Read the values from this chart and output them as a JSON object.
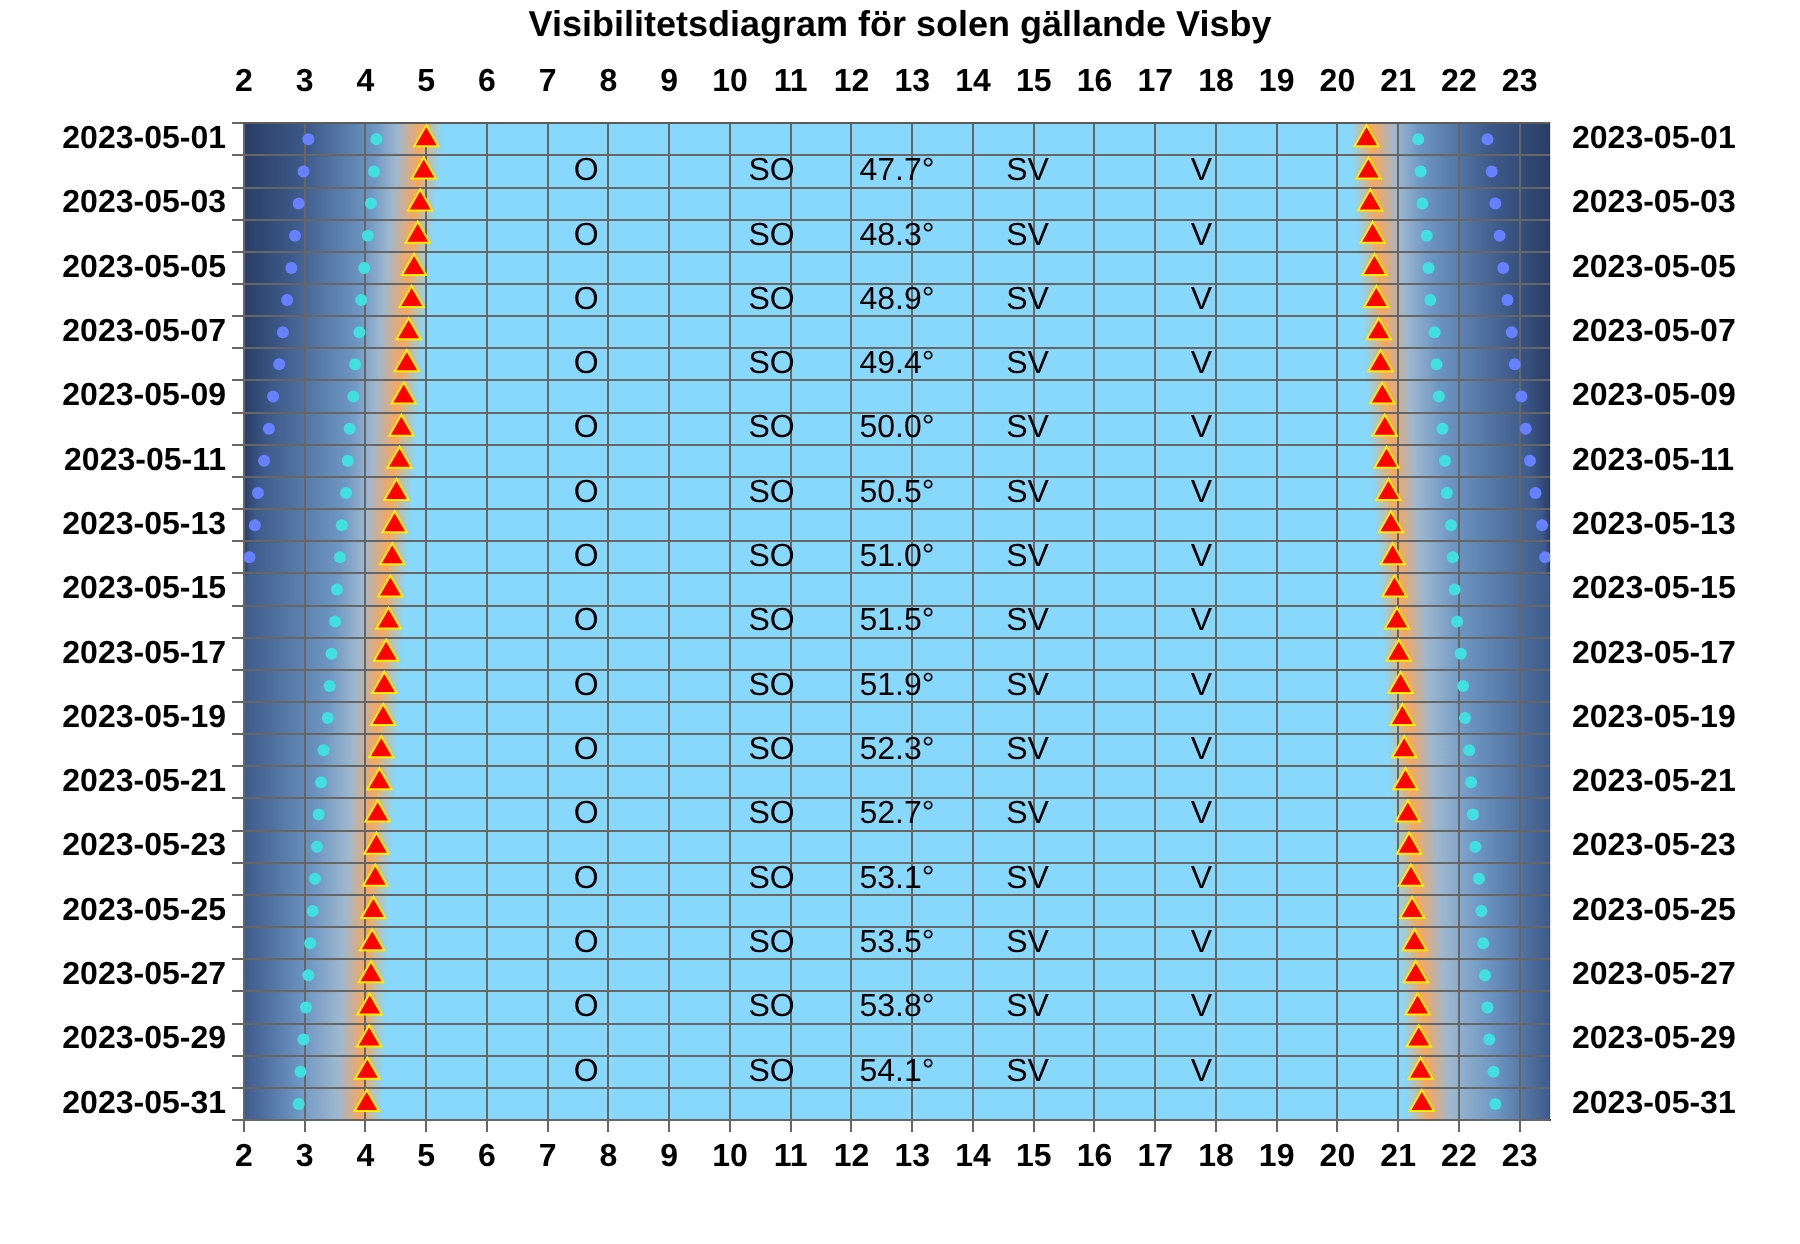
{
  "chart_data": {
    "type": "scatter",
    "title": "Visibilitetsdiagram för solen gällande Visby",
    "orientation": "horizontal",
    "categories": [
      "2023-05-01",
      null,
      "2023-05-03",
      null,
      "2023-05-05",
      null,
      "2023-05-07",
      null,
      "2023-05-09",
      null,
      "2023-05-11",
      null,
      "2023-05-13",
      null,
      "2023-05-15",
      null,
      "2023-05-17",
      null,
      "2023-05-19",
      null,
      "2023-05-21",
      null,
      "2023-05-23",
      null,
      "2023-05-25",
      null,
      "2023-05-27",
      null,
      "2023-05-29",
      null,
      "2023-05-31"
    ],
    "y2_categories": [
      "2023-05-01",
      null,
      "2023-05-03",
      null,
      "2023-05-05",
      null,
      "2023-05-07",
      null,
      "2023-05-09",
      null,
      "2023-05-11",
      null,
      "2023-05-13",
      null,
      "2023-05-15",
      null,
      "2023-05-17",
      null,
      "2023-05-19",
      null,
      "2023-05-21",
      null,
      "2023-05-23",
      null,
      "2023-05-25",
      null,
      "2023-05-27",
      null,
      "2023-05-29",
      null,
      "2023-05-31"
    ],
    "xlim": [
      2,
      23.5
    ],
    "xticks": [
      2,
      3,
      4,
      5,
      6,
      7,
      8,
      9,
      10,
      11,
      12,
      13,
      14,
      15,
      16,
      17,
      18,
      19,
      20,
      21,
      22,
      23
    ],
    "x2lim": [
      2,
      23.5
    ],
    "x2ticks": [
      2,
      3,
      4,
      5,
      6,
      7,
      8,
      9,
      10,
      11,
      12,
      13,
      14,
      15,
      16,
      17,
      18,
      19,
      20,
      21,
      22,
      23
    ],
    "grid": true,
    "series": [
      {
        "type": "scatter",
        "marker": "circle",
        "color": "#6680ff",
        "values": [
          3.06,
          2.98,
          2.9,
          2.84,
          2.78,
          2.71,
          2.64,
          2.58,
          2.48,
          2.41,
          2.33,
          2.23,
          2.18,
          2.09,
          null,
          null,
          null,
          null,
          null,
          null,
          null,
          null,
          null,
          null,
          null,
          null,
          null,
          null,
          null,
          null,
          null
        ]
      },
      {
        "type": "scatter",
        "marker": "circle",
        "color": "#40e0e0",
        "values": [
          4.18,
          4.14,
          4.09,
          4.04,
          3.98,
          3.93,
          3.9,
          3.83,
          3.8,
          3.74,
          3.71,
          3.68,
          3.61,
          3.58,
          3.53,
          3.5,
          3.44,
          3.41,
          3.38,
          3.31,
          3.27,
          3.23,
          3.2,
          3.17,
          3.13,
          3.09,
          3.06,
          3.02,
          2.98,
          2.93,
          2.9
        ]
      },
      {
        "type": "scatter",
        "marker": "triangle",
        "color": "#ff0000",
        "values": [
          5.0,
          4.96,
          4.9,
          4.86,
          4.8,
          4.76,
          4.71,
          4.68,
          4.63,
          4.59,
          4.56,
          4.51,
          4.48,
          4.44,
          4.41,
          4.38,
          4.34,
          4.31,
          4.29,
          4.26,
          4.23,
          4.2,
          4.18,
          4.16,
          4.13,
          4.11,
          4.09,
          4.07,
          4.06,
          4.03,
          4.02
        ]
      },
      {
        "type": "scatter",
        "marker": "triangle",
        "color": "#ff0000",
        "values": [
          20.48,
          20.51,
          20.54,
          20.58,
          20.61,
          20.64,
          20.68,
          20.71,
          20.74,
          20.78,
          20.81,
          20.84,
          20.88,
          20.91,
          20.94,
          20.98,
          21.01,
          21.04,
          21.07,
          21.1,
          21.12,
          21.16,
          21.18,
          21.21,
          21.23,
          21.27,
          21.29,
          21.32,
          21.34,
          21.37,
          21.39
        ]
      },
      {
        "type": "scatter",
        "marker": "circle",
        "color": "#40e0e0",
        "values": [
          21.33,
          21.37,
          21.4,
          21.47,
          21.5,
          21.53,
          21.6,
          21.63,
          21.67,
          21.73,
          21.77,
          21.8,
          21.87,
          21.9,
          21.93,
          21.97,
          22.03,
          22.07,
          22.1,
          22.17,
          22.2,
          22.23,
          22.27,
          22.33,
          22.37,
          22.4,
          22.43,
          22.47,
          22.5,
          22.57,
          22.6
        ]
      },
      {
        "type": "scatter",
        "marker": "circle",
        "color": "#6680ff",
        "values": [
          22.47,
          22.54,
          22.6,
          22.67,
          22.73,
          22.8,
          22.87,
          22.92,
          23.03,
          23.1,
          23.17,
          23.26,
          23.37,
          23.42,
          null,
          null,
          null,
          null,
          null,
          null,
          null,
          null,
          null,
          null,
          null,
          null,
          null,
          null,
          null,
          null,
          null
        ]
      }
    ],
    "annotations": [
      "O",
      "SO",
      "47.7°",
      "SV",
      "V",
      "O",
      "SO",
      "48.3°",
      "SV",
      "V",
      "O",
      "SO",
      "48.9°",
      "SV",
      "V",
      "O",
      "SO",
      "49.4°",
      "SV",
      "V",
      "O",
      "SO",
      "50.0°",
      "SV",
      "V",
      "O",
      "SO",
      "50.5°",
      "SV",
      "V",
      "O",
      "SO",
      "51.0°",
      "SV",
      "V",
      "O",
      "SO",
      "51.5°",
      "SV",
      "V",
      "O",
      "SO",
      "51.9°",
      "SV",
      "V",
      "O",
      "SO",
      "52.3°",
      "SV",
      "V",
      "O",
      "SO",
      "52.7°",
      "SV",
      "V",
      "O",
      "SO",
      "53.1°",
      "SV",
      "V",
      "O",
      "SO",
      "53.5°",
      "SV",
      "V",
      "O",
      "SO",
      "53.8°",
      "SV",
      "V",
      "O",
      "SO",
      "54.1°",
      "SV",
      "V"
    ]
  }
}
